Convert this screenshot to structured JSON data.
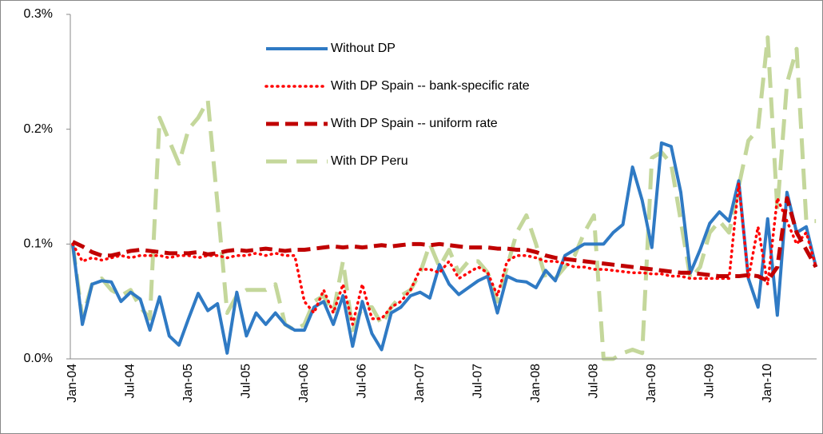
{
  "chart_data": {
    "type": "line",
    "categories": [
      "Jan-04",
      null,
      null,
      null,
      null,
      null,
      "Jul-04",
      null,
      null,
      null,
      null,
      null,
      "Jan-05",
      null,
      null,
      null,
      null,
      null,
      "Jul-05",
      null,
      null,
      null,
      null,
      null,
      "Jan-06",
      null,
      null,
      null,
      null,
      null,
      "Jul-06",
      null,
      null,
      null,
      null,
      null,
      "Jan-07",
      null,
      null,
      null,
      null,
      null,
      "Jul-07",
      null,
      null,
      null,
      null,
      null,
      "Jan-08",
      null,
      null,
      null,
      null,
      null,
      "Jul-08",
      null,
      null,
      null,
      null,
      null,
      "Jan-09",
      null,
      null,
      null,
      null,
      null,
      "Jul-09",
      null,
      null,
      null,
      null,
      null,
      "Jan-10",
      null,
      null,
      null,
      null,
      null
    ],
    "ylim": [
      0,
      0.3
    ],
    "yticks": [
      {
        "value": 0,
        "label": "0.0%"
      },
      {
        "value": 0.1,
        "label": "0.1%"
      },
      {
        "value": 0.2,
        "label": "0.2%"
      },
      {
        "value": 0.3,
        "label": "0.3%"
      }
    ],
    "grid": false,
    "series": [
      {
        "name": "Without DP",
        "color": "#2f7ac4",
        "style": "solid",
        "values": [
          0.1,
          0.03,
          0.065,
          0.068,
          0.067,
          0.05,
          0.058,
          0.052,
          0.025,
          0.054,
          0.02,
          0.012,
          0.035,
          0.057,
          0.042,
          0.048,
          0.005,
          0.058,
          0.02,
          0.04,
          0.03,
          0.04,
          0.03,
          0.025,
          0.025,
          0.045,
          0.05,
          0.03,
          0.055,
          0.011,
          0.05,
          0.022,
          0.008,
          0.04,
          0.045,
          0.055,
          0.058,
          0.053,
          0.082,
          0.065,
          0.056,
          0.062,
          0.068,
          0.072,
          0.04,
          0.072,
          0.068,
          0.067,
          0.062,
          0.077,
          0.068,
          0.09,
          0.095,
          0.1,
          0.1,
          0.1,
          0.11,
          0.117,
          0.167,
          0.138,
          0.097,
          0.188,
          0.185,
          0.145,
          0.075,
          0.095,
          0.118,
          0.128,
          0.12,
          0.155,
          0.07,
          0.045,
          0.122,
          0.038,
          0.145,
          0.11,
          0.115,
          0.08
        ]
      },
      {
        "name": "With DP Spain -- bank-specific rate",
        "color": "#ff0000",
        "style": "dotted",
        "values": [
          0.1,
          0.085,
          0.088,
          0.086,
          0.088,
          0.09,
          0.088,
          0.09,
          0.09,
          0.09,
          0.088,
          0.09,
          0.09,
          0.088,
          0.09,
          0.09,
          0.088,
          0.09,
          0.09,
          0.092,
          0.09,
          0.092,
          0.09,
          0.09,
          0.05,
          0.04,
          0.06,
          0.04,
          0.065,
          0.03,
          0.065,
          0.035,
          0.035,
          0.045,
          0.05,
          0.06,
          0.078,
          0.078,
          0.075,
          0.085,
          0.07,
          0.075,
          0.08,
          0.075,
          0.055,
          0.085,
          0.09,
          0.09,
          0.088,
          0.085,
          0.085,
          0.083,
          0.08,
          0.08,
          0.078,
          0.078,
          0.077,
          0.076,
          0.075,
          0.075,
          0.074,
          0.074,
          0.072,
          0.072,
          0.07,
          0.07,
          0.07,
          0.07,
          0.07,
          0.153,
          0.07,
          0.115,
          0.065,
          0.14,
          0.12,
          0.1,
          0.11,
          0.08
        ]
      },
      {
        "name": "With DP Spain -- uniform rate",
        "color": "#c00000",
        "style": "dashed",
        "values": [
          0.102,
          0.098,
          0.093,
          0.09,
          0.09,
          0.092,
          0.094,
          0.095,
          0.094,
          0.093,
          0.092,
          0.092,
          0.092,
          0.093,
          0.091,
          0.092,
          0.094,
          0.095,
          0.094,
          0.095,
          0.096,
          0.095,
          0.094,
          0.095,
          0.095,
          0.096,
          0.097,
          0.098,
          0.097,
          0.098,
          0.097,
          0.098,
          0.099,
          0.098,
          0.099,
          0.1,
          0.1,
          0.099,
          0.1,
          0.099,
          0.098,
          0.097,
          0.097,
          0.097,
          0.096,
          0.096,
          0.095,
          0.095,
          0.093,
          0.09,
          0.088,
          0.087,
          0.086,
          0.085,
          0.084,
          0.083,
          0.082,
          0.081,
          0.08,
          0.079,
          0.078,
          0.077,
          0.076,
          0.075,
          0.075,
          0.074,
          0.073,
          0.072,
          0.072,
          0.072,
          0.073,
          0.072,
          0.068,
          0.08,
          0.14,
          0.11,
          0.095,
          0.08
        ]
      },
      {
        "name": "With DP Peru",
        "color": "#c4d79b",
        "style": "long-dashed",
        "values": [
          0.1,
          0.035,
          0.065,
          0.07,
          0.06,
          0.055,
          0.06,
          0.045,
          0.035,
          0.21,
          0.19,
          0.17,
          0.2,
          0.21,
          0.225,
          0.135,
          0.04,
          0.055,
          0.06,
          0.06,
          0.06,
          0.065,
          0.03,
          0.025,
          0.03,
          0.05,
          0.055,
          0.04,
          0.085,
          0.025,
          0.045,
          0.045,
          0.03,
          0.045,
          0.055,
          0.06,
          0.075,
          0.1,
          0.08,
          0.095,
          0.075,
          0.085,
          0.085,
          0.075,
          0.05,
          0.08,
          0.11,
          0.125,
          0.1,
          0.07,
          0.07,
          0.08,
          0.09,
          0.11,
          0.125,
          0,
          0,
          0.005,
          0.008,
          0.005,
          0.175,
          0.18,
          0.17,
          0.12,
          0.07,
          0.08,
          0.11,
          0.12,
          0.11,
          0.15,
          0.19,
          0.2,
          0.28,
          0.13,
          0.24,
          0.27,
          0.12,
          0.12
        ]
      }
    ]
  }
}
